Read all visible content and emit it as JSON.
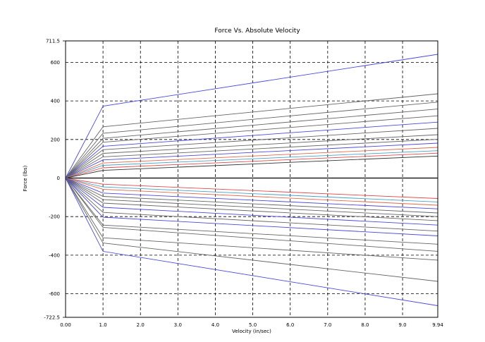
{
  "chart_data": {
    "type": "line",
    "title": "Force Vs. Absolute Velocity",
    "xlabel": "Velocity (in/sec)",
    "ylabel": "Force (lbs)",
    "xlim": [
      0,
      9.94
    ],
    "ylim": [
      -722.5,
      711.5
    ],
    "grid": true,
    "x_ticks": [
      {
        "value": 0,
        "label": "0.00"
      },
      {
        "value": 1,
        "label": "1.0"
      },
      {
        "value": 2,
        "label": "2.0"
      },
      {
        "value": 3,
        "label": "3.0"
      },
      {
        "value": 4,
        "label": "4.0"
      },
      {
        "value": 5,
        "label": "5.0"
      },
      {
        "value": 6,
        "label": "6.0"
      },
      {
        "value": 7,
        "label": "7.0"
      },
      {
        "value": 8,
        "label": "8.0"
      },
      {
        "value": 9,
        "label": "9.0"
      },
      {
        "value": 9.94,
        "label": "9.94"
      }
    ],
    "y_ticks": [
      {
        "value": 711.5,
        "label": "711.5"
      },
      {
        "value": 600,
        "label": "600"
      },
      {
        "value": 400,
        "label": "400"
      },
      {
        "value": 200,
        "label": "200"
      },
      {
        "value": 0,
        "label": "0"
      },
      {
        "value": -200,
        "label": "-200"
      },
      {
        "value": -400,
        "label": "-400"
      },
      {
        "value": -600,
        "label": "-600"
      },
      {
        "value": -722.5,
        "label": "-722.5"
      }
    ],
    "x": [
      0,
      1,
      9.94
    ],
    "series": [
      {
        "color": "#4a4ae0",
        "values": [
          0,
          373,
          642
        ]
      },
      {
        "color": "#666666",
        "values": [
          0,
          266,
          437
        ]
      },
      {
        "color": "#666666",
        "values": [
          0,
          232,
          394
        ]
      },
      {
        "color": "#666666",
        "values": [
          0,
          206,
          358
        ]
      },
      {
        "color": "#666666",
        "values": [
          0,
          186,
          323
        ]
      },
      {
        "color": "#4a4ae0",
        "values": [
          0,
          165,
          290
        ]
      },
      {
        "color": "#666666",
        "values": [
          0,
          147,
          258
        ]
      },
      {
        "color": "#666666",
        "values": [
          0,
          128,
          225
        ]
      },
      {
        "color": "#666666",
        "values": [
          0,
          110,
          201
        ]
      },
      {
        "color": "#4a4ae0",
        "values": [
          0,
          94,
          181
        ]
      },
      {
        "color": "#e06a4a",
        "values": [
          0,
          78,
          159
        ]
      },
      {
        "color": "#4aa0c8",
        "values": [
          0,
          66,
          142
        ]
      },
      {
        "color": "#e04a4a",
        "values": [
          0,
          53,
          129
        ]
      },
      {
        "color": "#333333",
        "values": [
          0,
          40,
          114
        ]
      },
      {
        "color": "#e04a4a",
        "values": [
          0,
          -32,
          -106
        ]
      },
      {
        "color": "#4aa0c8",
        "values": [
          0,
          -46,
          -124
        ]
      },
      {
        "color": "#e06a4a",
        "values": [
          0,
          -58,
          -141
        ]
      },
      {
        "color": "#4a4ae0",
        "values": [
          0,
          -78,
          -160
        ]
      },
      {
        "color": "#666666",
        "values": [
          0,
          -95,
          -181
        ]
      },
      {
        "color": "#666666",
        "values": [
          0,
          -112,
          -200
        ]
      },
      {
        "color": "#666666",
        "values": [
          0,
          -130,
          -221
        ]
      },
      {
        "color": "#4a4ae0",
        "values": [
          0,
          -152,
          -244
        ]
      },
      {
        "color": "#666666",
        "values": [
          0,
          -178,
          -275
        ]
      },
      {
        "color": "#4a4ae0",
        "values": [
          0,
          -203,
          -300
        ]
      },
      {
        "color": "#666666",
        "values": [
          0,
          -244,
          -343
        ]
      },
      {
        "color": "#666666",
        "values": [
          0,
          -256,
          -380
        ]
      },
      {
        "color": "#666666",
        "values": [
          0,
          -310,
          -426
        ]
      },
      {
        "color": "#666666",
        "values": [
          0,
          -337,
          -536
        ]
      },
      {
        "color": "#4a4ae0",
        "values": [
          0,
          -380,
          -662
        ]
      }
    ]
  }
}
